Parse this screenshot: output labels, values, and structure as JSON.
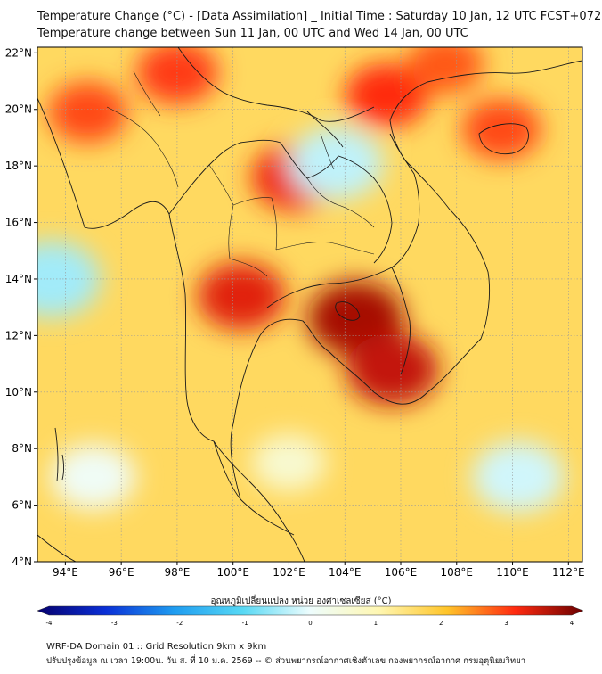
{
  "header": {
    "line1": "Temperature Change (°C) - [Data Assimilation] _ Initial Time : Saturday 10 Jan, 12 UTC FCST+072",
    "line2": "Temperature change between Sun 11 Jan, 00 UTC and Wed 14 Jan, 00 UTC"
  },
  "map": {
    "lon_range": [
      93,
      112.5
    ],
    "lat_range": [
      4,
      22.2
    ],
    "lon_ticks": [
      "94°E",
      "96°E",
      "98°E",
      "100°E",
      "102°E",
      "104°E",
      "106°E",
      "108°E",
      "110°E",
      "112°E"
    ],
    "lon_tick_values": [
      94,
      96,
      98,
      100,
      102,
      104,
      106,
      108,
      110,
      112
    ],
    "lat_ticks": [
      "4°N",
      "6°N",
      "8°N",
      "10°N",
      "12°N",
      "14°N",
      "16°N",
      "18°N",
      "20°N",
      "22°N"
    ],
    "lat_tick_values": [
      4,
      6,
      8,
      10,
      12,
      14,
      16,
      18,
      20,
      22
    ],
    "background_value": 1.6,
    "field_features": [
      {
        "name": "cambodia-hotspot",
        "lon": 104.4,
        "lat": 12.6,
        "value": 3.6
      },
      {
        "name": "mekong-hotspot",
        "lon": 105.7,
        "lat": 10.8,
        "value": 3.4
      },
      {
        "name": "central-thailand-hotspot",
        "lon": 100.3,
        "lat": 13.4,
        "value": 3.2
      },
      {
        "name": "laos-hotspot",
        "lon": 102.2,
        "lat": 17.6,
        "value": 3.1
      },
      {
        "name": "north-vietnam-hotspot",
        "lon": 105.5,
        "lat": 20.5,
        "value": 3.0
      },
      {
        "name": "myanmar-west-hotspot",
        "lon": 94.8,
        "lat": 19.9,
        "value": 2.8
      },
      {
        "name": "myanmar-north-hotspot",
        "lon": 98.0,
        "lat": 21.3,
        "value": 2.9
      },
      {
        "name": "hainan-hotspot",
        "lon": 109.6,
        "lat": 19.3,
        "value": 2.8
      },
      {
        "name": "guangxi-hotspot",
        "lon": 107.6,
        "lat": 21.6,
        "value": 2.7
      },
      {
        "name": "nong-khai-cold-spot",
        "lon": 103.7,
        "lat": 18.1,
        "value": -0.3
      },
      {
        "name": "andaman-sea-cool",
        "lon": 93.5,
        "lat": 14.0,
        "value": -0.5
      },
      {
        "name": "south-china-sea-cool",
        "lon": 110.2,
        "lat": 7.0,
        "value": -0.2
      },
      {
        "name": "gulf-of-thailand-cool",
        "lon": 102.0,
        "lat": 7.5,
        "value": 0.6
      },
      {
        "name": "south-west-sea-cool",
        "lon": 95.0,
        "lat": 7.0,
        "value": 0.1
      }
    ]
  },
  "colorbar": {
    "title": "อุณหภูมิเปลี่ยนแปลง หน่วย องศาเซลเซียส (°C)",
    "min": -4,
    "max": 4,
    "tick_labels": [
      "-4",
      "-3",
      "-2",
      "-1",
      "0",
      "1",
      "2",
      "3",
      "4"
    ],
    "tick_values": [
      -4,
      -3,
      -2,
      -1,
      0,
      1,
      2,
      3,
      4
    ],
    "stops": [
      {
        "v": -4,
        "color": "#06006e"
      },
      {
        "v": -3,
        "color": "#0a2fd6"
      },
      {
        "v": -2,
        "color": "#1f9cf0"
      },
      {
        "v": -1,
        "color": "#56d8f4"
      },
      {
        "v": 0,
        "color": "#eefdfd"
      },
      {
        "v": 1,
        "color": "#fff7b2"
      },
      {
        "v": 2,
        "color": "#ffc52a"
      },
      {
        "v": 3,
        "color": "#ff2a10"
      },
      {
        "v": 4,
        "color": "#6a0000"
      }
    ]
  },
  "footer": {
    "line1": "WRF-DA Domain 01 :: Grid Resolution 9km x 9km",
    "line2": "ปรับปรุงข้อมูล ณ เวลา 19:00น. วัน ส. ที่ 10 ม.ค. 2569 -- © ส่วนพยากรณ์อากาศเชิงตัวเลข กองพยากรณ์อากาศ กรมอุตุนิยมวิทยา"
  }
}
